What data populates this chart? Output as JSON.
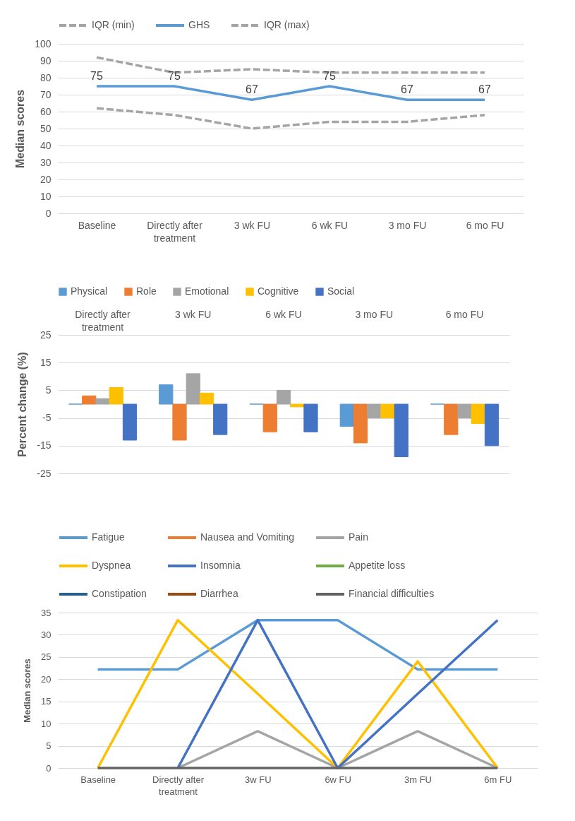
{
  "chart_data": [
    {
      "type": "line",
      "categories": [
        "Baseline",
        "Directly after treatment",
        "3 wk FU",
        "6 wk FU",
        "3 mo FU",
        "6 mo FU"
      ],
      "series": [
        {
          "name": "IQR (min)",
          "color": "#a5a5a5",
          "line_style": "dashed",
          "values": [
            62,
            58,
            50,
            54,
            54,
            58
          ]
        },
        {
          "name": "GHS",
          "color": "#5b9bd5",
          "values": [
            75,
            75,
            67,
            75,
            67,
            67
          ],
          "value_labels": [
            "75",
            "75",
            "67",
            "75",
            "67",
            "67"
          ]
        },
        {
          "name": "IQR (max)",
          "color": "#a5a5a5",
          "line_style": "dashed",
          "values": [
            92,
            83,
            85,
            83,
            83,
            83
          ]
        }
      ],
      "ylabel": "Median scores",
      "ylim": [
        0,
        100
      ],
      "yticks": [
        0,
        10,
        20,
        30,
        40,
        50,
        60,
        70,
        80,
        90,
        100
      ],
      "grid": "y",
      "legend": "top"
    },
    {
      "type": "bar",
      "categories": [
        "Directly after treatment",
        "3 wk FU",
        "6 wk FU",
        "3 mo FU",
        "6 mo FU"
      ],
      "series": [
        {
          "name": "Physical",
          "color": "#5b9bd5",
          "values": [
            0,
            7,
            0,
            -8,
            0
          ]
        },
        {
          "name": "Role",
          "color": "#ed7d31",
          "values": [
            3,
            -13,
            -10,
            -14,
            -11
          ]
        },
        {
          "name": "Emotional",
          "color": "#a5a5a5",
          "values": [
            2,
            11,
            5,
            -5,
            -5
          ]
        },
        {
          "name": "Cognitive",
          "color": "#ffc000",
          "values": [
            6,
            4,
            -1,
            -5,
            -7
          ]
        },
        {
          "name": "Social",
          "color": "#4472c4",
          "values": [
            -13,
            -11,
            -10,
            -19,
            -15
          ]
        }
      ],
      "ylabel": "Percent change (%)",
      "ylim": [
        -25,
        25
      ],
      "yticks": [
        -25,
        -15,
        -5,
        5,
        15,
        25
      ],
      "grid": "y",
      "legend": "top"
    },
    {
      "type": "line",
      "categories": [
        "Baseline",
        "Directly after treatment",
        "3w FU",
        "6w FU",
        "3m FU",
        "6m FU"
      ],
      "series": [
        {
          "name": "Fatigue",
          "color": "#5b9bd5",
          "values": [
            22.2,
            22.2,
            33.3,
            33.3,
            22.2,
            22.2
          ]
        },
        {
          "name": "Nausea and Vomiting",
          "color": "#ed7d31",
          "values": [
            null,
            null,
            null,
            null,
            null,
            null
          ]
        },
        {
          "name": "Pain",
          "color": "#a5a5a5",
          "values": [
            null,
            0,
            8.3,
            0,
            8.3,
            0
          ]
        },
        {
          "name": "Dyspnea",
          "color": "#ffc000",
          "values": [
            0,
            33.3,
            16.7,
            0,
            24,
            0
          ]
        },
        {
          "name": "Insomnia",
          "color": "#4472c4",
          "values": [
            null,
            0,
            33.3,
            0,
            16.7,
            33.3
          ]
        },
        {
          "name": "Appetite loss",
          "color": "#70ad47",
          "values": [
            null,
            null,
            null,
            null,
            null,
            null
          ]
        },
        {
          "name": "Constipation",
          "color": "#255e91",
          "values": [
            null,
            null,
            null,
            null,
            null,
            null
          ]
        },
        {
          "name": "Diarrhea",
          "color": "#9e480e",
          "values": [
            null,
            null,
            null,
            null,
            null,
            null
          ]
        },
        {
          "name": "Financial difficulties",
          "color": "#636363",
          "values": [
            0,
            0,
            0,
            0,
            0,
            0
          ]
        }
      ],
      "ylabel": "Median scores",
      "ylim": [
        0,
        35
      ],
      "yticks": [
        0,
        5,
        10,
        15,
        20,
        25,
        30,
        35
      ],
      "grid": "y",
      "legend": "top"
    }
  ]
}
